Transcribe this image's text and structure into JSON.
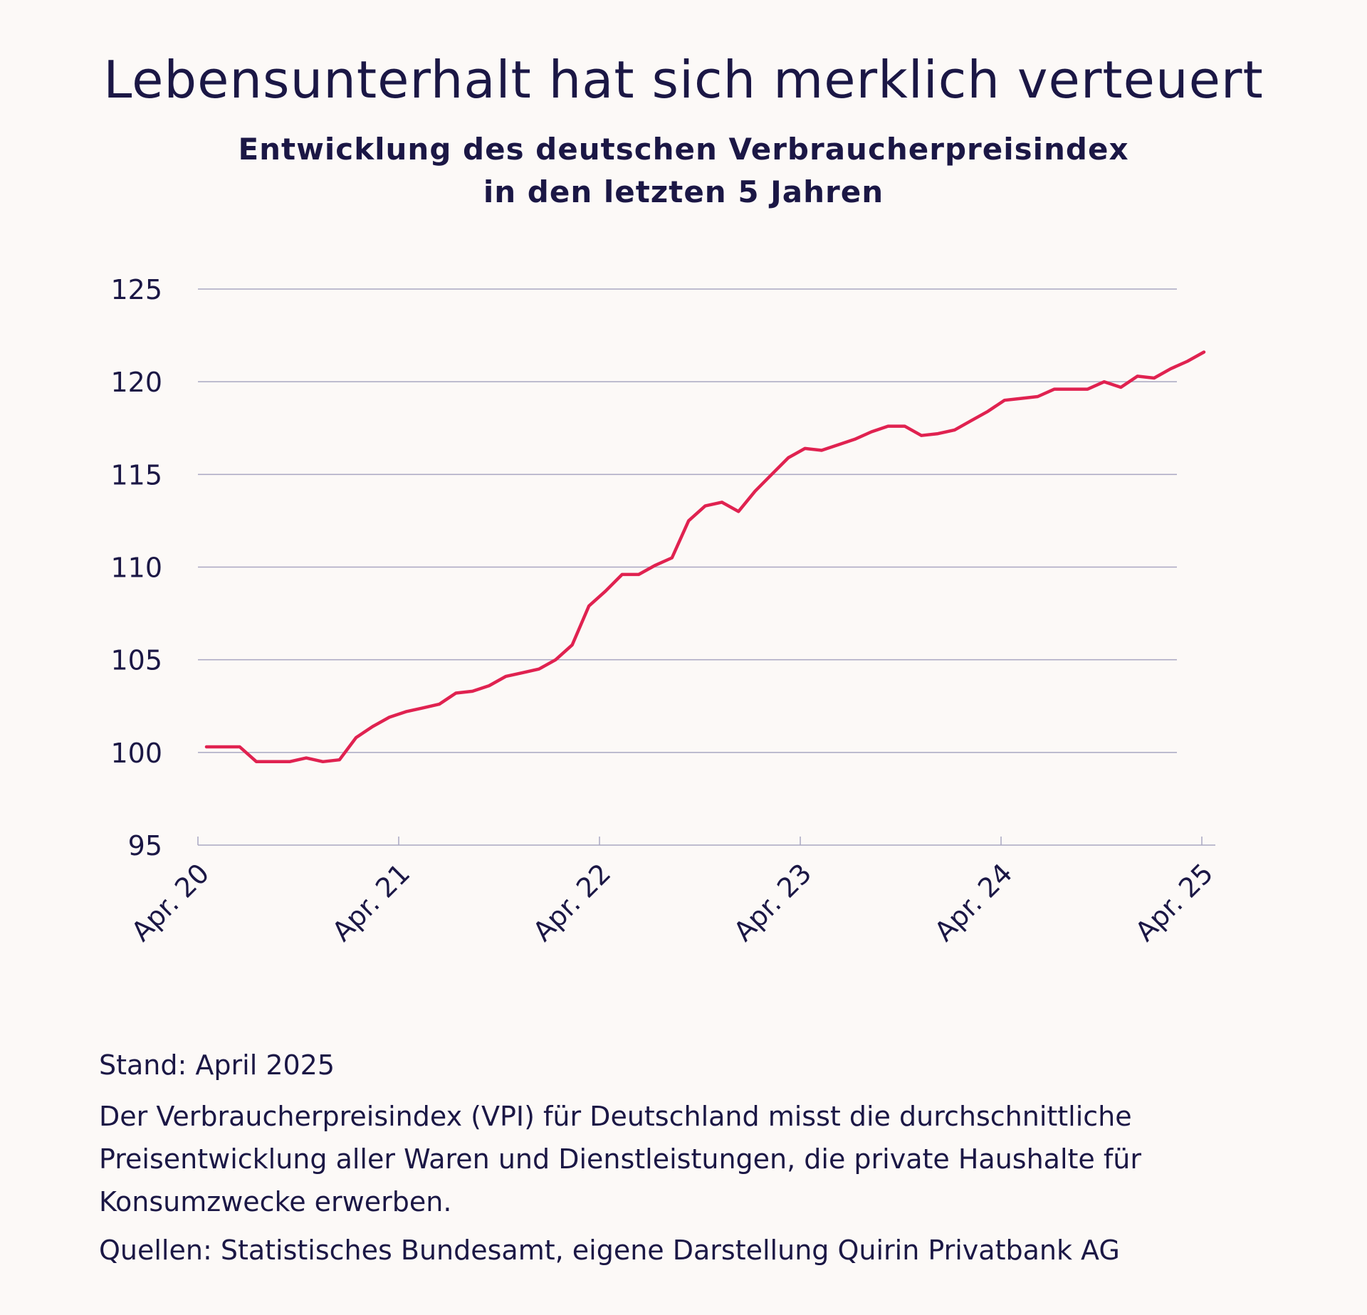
{
  "colors": {
    "background": "#fcf9f7",
    "text": "#1b1745",
    "line": "#e02250",
    "grid": "#a9a7c2"
  },
  "chart_data": {
    "type": "line",
    "title": "Lebensunterhalt hat sich merklich verteuert",
    "subtitle": [
      "Entwicklung des deutschen Verbraucherpreisindex",
      "in den letzten 5 Jahren"
    ],
    "xlabel": "",
    "ylabel": "",
    "ylim": [
      95,
      125
    ],
    "yticks": [
      95,
      100,
      105,
      110,
      115,
      120,
      125
    ],
    "ytick_labels": [
      "95",
      "100",
      "105",
      "110",
      "115",
      "120",
      "125"
    ],
    "xtick_labels": [
      "Apr. 20",
      "Apr. 21",
      "Apr. 22",
      "Apr. 23",
      "Apr. 24",
      "Apr. 25"
    ],
    "grid": true,
    "series": [
      {
        "x": [
          "2020-04",
          "2020-05",
          "2020-06",
          "2020-07",
          "2020-08",
          "2020-09",
          "2020-10",
          "2020-11",
          "2020-12",
          "2021-01",
          "2021-02",
          "2021-03",
          "2021-04",
          "2021-05",
          "2021-06",
          "2021-07",
          "2021-08",
          "2021-09",
          "2021-10",
          "2021-11",
          "2021-12",
          "2022-01",
          "2022-02",
          "2022-03",
          "2022-04",
          "2022-05",
          "2022-06",
          "2022-07",
          "2022-08",
          "2022-09",
          "2022-10",
          "2022-11",
          "2022-12",
          "2023-01",
          "2023-02",
          "2023-03",
          "2023-04",
          "2023-05",
          "2023-06",
          "2023-07",
          "2023-08",
          "2023-09",
          "2023-10",
          "2023-11",
          "2023-12",
          "2024-01",
          "2024-02",
          "2024-03",
          "2024-04",
          "2024-05",
          "2024-06",
          "2024-07",
          "2024-08",
          "2024-09",
          "2024-10",
          "2024-11",
          "2024-12",
          "2025-01",
          "2025-02",
          "2025-03",
          "2025-04"
        ],
        "values": [
          100.3,
          100.3,
          100.3,
          99.5,
          99.5,
          99.5,
          99.7,
          99.5,
          99.6,
          100.8,
          101.4,
          101.9,
          102.2,
          102.4,
          102.6,
          103.2,
          103.3,
          103.6,
          104.1,
          104.3,
          104.5,
          105.0,
          105.8,
          107.9,
          108.7,
          109.6,
          109.6,
          110.1,
          110.5,
          112.5,
          113.3,
          113.5,
          113.0,
          114.1,
          115.0,
          115.9,
          116.4,
          116.3,
          116.6,
          116.9,
          117.3,
          117.6,
          117.6,
          117.1,
          117.2,
          117.4,
          117.9,
          118.4,
          119.0,
          119.1,
          119.2,
          119.6,
          119.6,
          119.6,
          120.0,
          119.7,
          120.3,
          120.2,
          120.7,
          121.1,
          121.6
        ]
      }
    ]
  },
  "footer": {
    "stand": "Stand: April 2025",
    "description": "Der Verbraucherpreisindex (VPI) für Deutschland misst die durchschnittliche Preisentwicklung aller Waren und Dienstleistungen, die private Haushalte für Konsumzwecke erwerben.",
    "sources": "Quellen: Statistisches Bundesamt, eigene Darstellung Quirin Privatbank AG"
  }
}
